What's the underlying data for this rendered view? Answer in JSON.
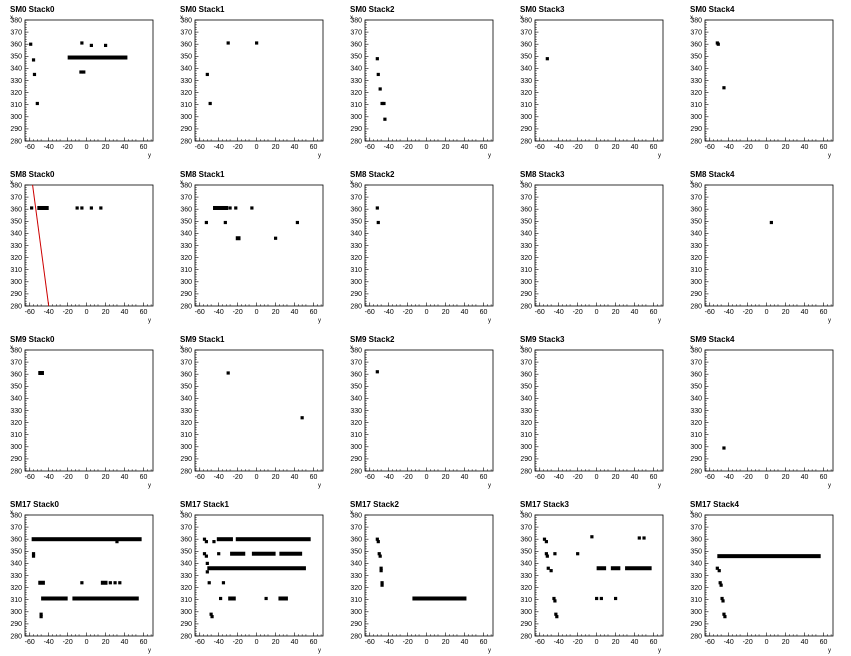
{
  "chart_data": [
    {
      "type": "scatter",
      "title": "SM0 Stack0",
      "xlabel": "y",
      "ylabel": "x",
      "xlim": [
        -65,
        70
      ],
      "ylim": [
        280,
        380
      ],
      "x_ticks": [
        -60,
        -40,
        -20,
        0,
        20,
        40,
        60
      ],
      "y_ticks": [
        280,
        290,
        300,
        310,
        320,
        330,
        340,
        350,
        360,
        370,
        380
      ],
      "segments": [
        {
          "x1": -20,
          "x2": 43,
          "y": 349
        }
      ],
      "points": [
        [
          -59,
          360
        ],
        [
          -56,
          347
        ],
        [
          -55,
          335
        ],
        [
          -52,
          311
        ],
        [
          -5,
          361
        ],
        [
          5,
          359
        ],
        [
          20,
          359
        ],
        [
          -6,
          337
        ],
        [
          -3,
          337
        ]
      ]
    },
    {
      "type": "scatter",
      "title": "SM0 Stack1",
      "xlabel": "y",
      "ylabel": "x",
      "xlim": [
        -65,
        70
      ],
      "ylim": [
        280,
        380
      ],
      "x_ticks": [
        -60,
        -40,
        -20,
        0,
        20,
        40,
        60
      ],
      "y_ticks": [
        280,
        290,
        300,
        310,
        320,
        330,
        340,
        350,
        360,
        370,
        380
      ],
      "segments": [],
      "points": [
        [
          -52,
          335
        ],
        [
          -49,
          311
        ],
        [
          -30,
          361
        ],
        [
          0,
          361
        ]
      ]
    },
    {
      "type": "scatter",
      "title": "SM0 Stack2",
      "xlabel": "y",
      "ylabel": "x",
      "xlim": [
        -65,
        70
      ],
      "ylim": [
        280,
        380
      ],
      "x_ticks": [
        -60,
        -40,
        -20,
        0,
        20,
        40,
        60
      ],
      "y_ticks": [
        280,
        290,
        300,
        310,
        320,
        330,
        340,
        350,
        360,
        370,
        380
      ],
      "segments": [],
      "points": [
        [
          -52,
          348
        ],
        [
          -51,
          335
        ],
        [
          -49,
          323
        ],
        [
          -47,
          311
        ],
        [
          -45,
          311
        ],
        [
          -44,
          298
        ]
      ]
    },
    {
      "type": "scatter",
      "title": "SM0 Stack3",
      "xlabel": "y",
      "ylabel": "x",
      "xlim": [
        -65,
        70
      ],
      "ylim": [
        280,
        380
      ],
      "x_ticks": [
        -60,
        -40,
        -20,
        0,
        20,
        40,
        60
      ],
      "y_ticks": [
        280,
        290,
        300,
        310,
        320,
        330,
        340,
        350,
        360,
        370,
        380
      ],
      "segments": [],
      "points": [
        [
          -52,
          348
        ]
      ]
    },
    {
      "type": "scatter",
      "title": "SM0 Stack4",
      "xlabel": "y",
      "ylabel": "x",
      "xlim": [
        -65,
        70
      ],
      "ylim": [
        280,
        380
      ],
      "x_ticks": [
        -60,
        -40,
        -20,
        0,
        20,
        40,
        60
      ],
      "y_ticks": [
        280,
        290,
        300,
        310,
        320,
        330,
        340,
        350,
        360,
        370,
        380
      ],
      "segments": [],
      "points": [
        [
          -52,
          361
        ],
        [
          -51,
          360
        ],
        [
          -45,
          324
        ]
      ]
    },
    {
      "type": "scatter",
      "title": "SM8 Stack0",
      "xlabel": "y",
      "ylabel": "x",
      "xlim": [
        -65,
        70
      ],
      "ylim": [
        280,
        380
      ],
      "x_ticks": [
        -60,
        -40,
        -20,
        0,
        20,
        40,
        60
      ],
      "y_ticks": [
        280,
        290,
        300,
        310,
        320,
        330,
        340,
        350,
        360,
        370,
        380
      ],
      "segments": [
        {
          "x1": -52,
          "x2": -40,
          "y": 361
        }
      ],
      "fit_line": [
        [
          -57,
          380
        ],
        [
          -40,
          280
        ]
      ],
      "points": [
        [
          -58,
          361
        ],
        [
          -10,
          361
        ],
        [
          -5,
          361
        ],
        [
          5,
          361
        ],
        [
          15,
          361
        ]
      ]
    },
    {
      "type": "scatter",
      "title": "SM8 Stack1",
      "xlabel": "y",
      "ylabel": "x",
      "xlim": [
        -65,
        70
      ],
      "ylim": [
        280,
        380
      ],
      "x_ticks": [
        -60,
        -40,
        -20,
        0,
        20,
        40,
        60
      ],
      "y_ticks": [
        280,
        290,
        300,
        310,
        320,
        330,
        340,
        350,
        360,
        370,
        380
      ],
      "segments": [
        {
          "x1": -46,
          "x2": -30,
          "y": 361
        },
        {
          "x1": -22,
          "x2": -17,
          "y": 336
        }
      ],
      "points": [
        [
          -53,
          349
        ],
        [
          -33,
          349
        ],
        [
          -28,
          361
        ],
        [
          -22,
          361
        ],
        [
          -5,
          361
        ],
        [
          20,
          336
        ],
        [
          43,
          349
        ]
      ]
    },
    {
      "type": "scatter",
      "title": "SM8 Stack2",
      "xlabel": "y",
      "ylabel": "x",
      "xlim": [
        -65,
        70
      ],
      "ylim": [
        280,
        380
      ],
      "x_ticks": [
        -60,
        -40,
        -20,
        0,
        20,
        40,
        60
      ],
      "y_ticks": [
        280,
        290,
        300,
        310,
        320,
        330,
        340,
        350,
        360,
        370,
        380
      ],
      "segments": [],
      "points": [
        [
          -52,
          361
        ],
        [
          -51,
          349
        ]
      ]
    },
    {
      "type": "scatter",
      "title": "SM8 Stack3",
      "xlabel": "y",
      "ylabel": "x",
      "xlim": [
        -65,
        70
      ],
      "ylim": [
        280,
        380
      ],
      "x_ticks": [
        -60,
        -40,
        -20,
        0,
        20,
        40,
        60
      ],
      "y_ticks": [
        280,
        290,
        300,
        310,
        320,
        330,
        340,
        350,
        360,
        370,
        380
      ],
      "segments": [],
      "points": []
    },
    {
      "type": "scatter",
      "title": "SM8 Stack4",
      "xlabel": "y",
      "ylabel": "x",
      "xlim": [
        -65,
        70
      ],
      "ylim": [
        280,
        380
      ],
      "x_ticks": [
        -60,
        -40,
        -20,
        0,
        20,
        40,
        60
      ],
      "y_ticks": [
        280,
        290,
        300,
        310,
        320,
        330,
        340,
        350,
        360,
        370,
        380
      ],
      "segments": [],
      "points": [
        [
          5,
          349
        ]
      ]
    },
    {
      "type": "scatter",
      "title": "SM9 Stack0",
      "xlabel": "y",
      "ylabel": "x",
      "xlim": [
        -65,
        70
      ],
      "ylim": [
        280,
        380
      ],
      "x_ticks": [
        -60,
        -40,
        -20,
        0,
        20,
        40,
        60
      ],
      "y_ticks": [
        280,
        290,
        300,
        310,
        320,
        330,
        340,
        350,
        360,
        370,
        380
      ],
      "segments": [
        {
          "x1": -51,
          "x2": -45,
          "y": 361
        }
      ],
      "points": []
    },
    {
      "type": "scatter",
      "title": "SM9 Stack1",
      "xlabel": "y",
      "ylabel": "x",
      "xlim": [
        -65,
        70
      ],
      "ylim": [
        280,
        380
      ],
      "x_ticks": [
        -60,
        -40,
        -20,
        0,
        20,
        40,
        60
      ],
      "y_ticks": [
        280,
        290,
        300,
        310,
        320,
        330,
        340,
        350,
        360,
        370,
        380
      ],
      "segments": [],
      "points": [
        [
          -30,
          361
        ],
        [
          48,
          324
        ]
      ]
    },
    {
      "type": "scatter",
      "title": "SM9 Stack2",
      "xlabel": "y",
      "ylabel": "x",
      "xlim": [
        -65,
        70
      ],
      "ylim": [
        280,
        380
      ],
      "x_ticks": [
        -60,
        -40,
        -20,
        0,
        20,
        40,
        60
      ],
      "y_ticks": [
        280,
        290,
        300,
        310,
        320,
        330,
        340,
        350,
        360,
        370,
        380
      ],
      "segments": [],
      "points": [
        [
          -52,
          362
        ]
      ]
    },
    {
      "type": "scatter",
      "title": "SM9 Stack3",
      "xlabel": "y",
      "ylabel": "x",
      "xlim": [
        -65,
        70
      ],
      "ylim": [
        280,
        380
      ],
      "x_ticks": [
        -60,
        -40,
        -20,
        0,
        20,
        40,
        60
      ],
      "y_ticks": [
        280,
        290,
        300,
        310,
        320,
        330,
        340,
        350,
        360,
        370,
        380
      ],
      "segments": [],
      "points": []
    },
    {
      "type": "scatter",
      "title": "SM9 Stack4",
      "xlabel": "y",
      "ylabel": "x",
      "xlim": [
        -65,
        70
      ],
      "ylim": [
        280,
        380
      ],
      "x_ticks": [
        -60,
        -40,
        -20,
        0,
        20,
        40,
        60
      ],
      "y_ticks": [
        280,
        290,
        300,
        310,
        320,
        330,
        340,
        350,
        360,
        370,
        380
      ],
      "segments": [],
      "points": [
        [
          -45,
          299
        ]
      ]
    },
    {
      "type": "scatter",
      "title": "SM17 Stack0",
      "xlabel": "y",
      "ylabel": "x",
      "xlim": [
        -65,
        70
      ],
      "ylim": [
        280,
        380
      ],
      "x_ticks": [
        -60,
        -40,
        -20,
        0,
        20,
        40,
        60
      ],
      "y_ticks": [
        280,
        290,
        300,
        310,
        320,
        330,
        340,
        350,
        360,
        370,
        380
      ],
      "segments": [
        {
          "x1": -58,
          "x2": 58,
          "y": 360
        },
        {
          "x1": -51,
          "x2": -44,
          "y": 324
        },
        {
          "x1": -48,
          "x2": -20,
          "y": 311
        },
        {
          "x1": -15,
          "x2": 55,
          "y": 311
        },
        {
          "x1": 15,
          "x2": 22,
          "y": 324
        }
      ],
      "points": [
        [
          -56,
          348
        ],
        [
          -56,
          346
        ],
        [
          -48,
          298
        ],
        [
          -48,
          296
        ],
        [
          -5,
          324
        ],
        [
          25,
          324
        ],
        [
          30,
          324
        ],
        [
          35,
          324
        ],
        [
          32,
          358
        ]
      ]
    },
    {
      "type": "scatter",
      "title": "SM17 Stack1",
      "xlabel": "y",
      "ylabel": "x",
      "xlim": [
        -65,
        70
      ],
      "ylim": [
        280,
        380
      ],
      "x_ticks": [
        -60,
        -40,
        -20,
        0,
        20,
        40,
        60
      ],
      "y_ticks": [
        280,
        290,
        300,
        310,
        320,
        330,
        340,
        350,
        360,
        370,
        380
      ],
      "segments": [
        {
          "x1": -42,
          "x2": -25,
          "y": 360
        },
        {
          "x1": -22,
          "x2": 57,
          "y": 360
        },
        {
          "x1": -28,
          "x2": -12,
          "y": 348
        },
        {
          "x1": -5,
          "x2": 20,
          "y": 348
        },
        {
          "x1": 24,
          "x2": 48,
          "y": 348
        },
        {
          "x1": -52,
          "x2": 52,
          "y": 336
        },
        {
          "x1": -30,
          "x2": -22,
          "y": 311
        },
        {
          "x1": 23,
          "x2": 33,
          "y": 311
        }
      ],
      "points": [
        [
          -55,
          360
        ],
        [
          -53,
          358
        ],
        [
          -55,
          348
        ],
        [
          -53,
          346
        ],
        [
          -52,
          340
        ],
        [
          -50,
          324
        ],
        [
          -48,
          298
        ],
        [
          -47,
          296
        ],
        [
          -40,
          348
        ],
        [
          -35,
          324
        ],
        [
          -38,
          311
        ],
        [
          10,
          311
        ],
        [
          -45,
          358
        ],
        [
          -52,
          333
        ]
      ]
    },
    {
      "type": "scatter",
      "title": "SM17 Stack2",
      "xlabel": "y",
      "ylabel": "x",
      "xlim": [
        -65,
        70
      ],
      "ylim": [
        280,
        380
      ],
      "x_ticks": [
        -60,
        -40,
        -20,
        0,
        20,
        40,
        60
      ],
      "y_ticks": [
        280,
        290,
        300,
        310,
        320,
        330,
        340,
        350,
        360,
        370,
        380
      ],
      "segments": [
        {
          "x1": -15,
          "x2": 42,
          "y": 311
        }
      ],
      "points": [
        [
          -52,
          360
        ],
        [
          -51,
          358
        ],
        [
          -50,
          348
        ],
        [
          -49,
          346
        ],
        [
          -48,
          336
        ],
        [
          -48,
          334
        ],
        [
          -47,
          324
        ],
        [
          -47,
          322
        ]
      ]
    },
    {
      "type": "scatter",
      "title": "SM17 Stack3",
      "xlabel": "y",
      "ylabel": "x",
      "xlim": [
        -65,
        70
      ],
      "ylim": [
        280,
        380
      ],
      "x_ticks": [
        -60,
        -40,
        -20,
        0,
        20,
        40,
        60
      ],
      "y_ticks": [
        280,
        290,
        300,
        310,
        320,
        330,
        340,
        350,
        360,
        370,
        380
      ],
      "segments": [
        {
          "x1": 0,
          "x2": 10,
          "y": 336
        },
        {
          "x1": 15,
          "x2": 25,
          "y": 336
        },
        {
          "x1": 30,
          "x2": 58,
          "y": 336
        }
      ],
      "points": [
        [
          -55,
          360
        ],
        [
          -53,
          358
        ],
        [
          -53,
          348
        ],
        [
          -52,
          346
        ],
        [
          -51,
          336
        ],
        [
          -48,
          334
        ],
        [
          -44,
          348
        ],
        [
          -45,
          311
        ],
        [
          -44,
          309
        ],
        [
          -43,
          298
        ],
        [
          -42,
          296
        ],
        [
          -5,
          362
        ],
        [
          -20,
          348
        ],
        [
          0,
          311
        ],
        [
          5,
          311
        ],
        [
          20,
          311
        ],
        [
          45,
          361
        ],
        [
          50,
          361
        ]
      ]
    },
    {
      "type": "scatter",
      "title": "SM17 Stack4",
      "xlabel": "y",
      "ylabel": "x",
      "xlim": [
        -65,
        70
      ],
      "ylim": [
        280,
        380
      ],
      "x_ticks": [
        -60,
        -40,
        -20,
        0,
        20,
        40,
        60
      ],
      "y_ticks": [
        280,
        290,
        300,
        310,
        320,
        330,
        340,
        350,
        360,
        370,
        380
      ],
      "segments": [
        {
          "x1": -52,
          "x2": 57,
          "y": 346
        }
      ],
      "points": [
        [
          -52,
          336
        ],
        [
          -50,
          334
        ],
        [
          -49,
          324
        ],
        [
          -48,
          322
        ],
        [
          -47,
          311
        ],
        [
          -46,
          309
        ],
        [
          -45,
          298
        ],
        [
          -44,
          296
        ]
      ]
    }
  ],
  "colors": {
    "marker": "#000000",
    "fit_line": "#cc0000",
    "axes": "#000000",
    "frame": "#000000"
  }
}
